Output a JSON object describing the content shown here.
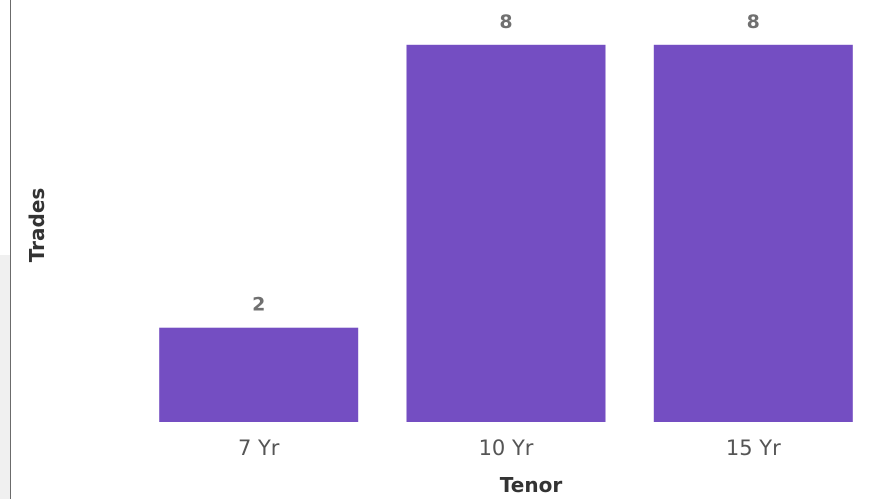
{
  "chart_data": {
    "type": "bar",
    "title": "",
    "xlabel": "Tenor",
    "ylabel": "Trades",
    "categories": [
      "7 Yr",
      "10 Yr",
      "15 Yr"
    ],
    "values": [
      2,
      8,
      8
    ],
    "ylim": [
      0,
      8.95
    ],
    "bar_color": "#744ec2",
    "data_labels": [
      "2",
      "8",
      "8"
    ],
    "grid": false,
    "legend": "none"
  }
}
